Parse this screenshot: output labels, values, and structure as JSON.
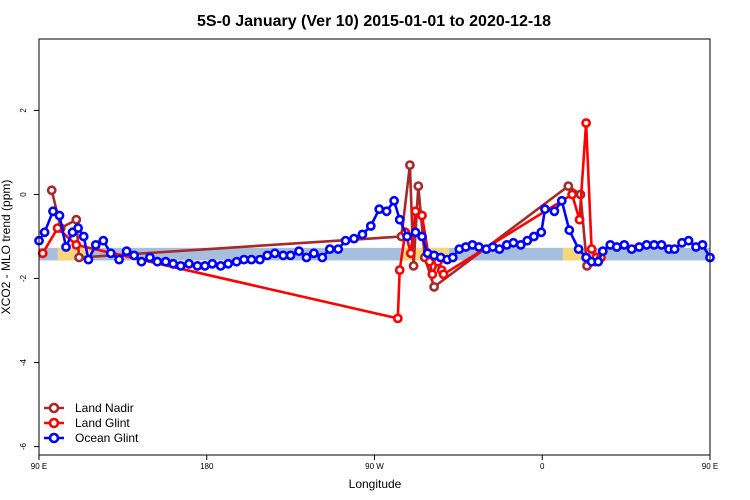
{
  "chart_data": {
    "type": "line",
    "title": "5S-0 January (Ver 10)   2015-01-01 to 2020-12-18",
    "xlabel": "Longitude",
    "ylabel": "XCO2 - MLO trend (ppm)",
    "xlim": [
      90,
      450
    ],
    "ylim": [
      -6.2,
      3.7
    ],
    "x_ticks": [
      {
        "value": 90,
        "label": "90 E"
      },
      {
        "value": 180,
        "label": "180"
      },
      {
        "value": 270,
        "label": "90 W"
      },
      {
        "value": 360,
        "label": "0"
      },
      {
        "value": 450,
        "label": "90 E"
      },
      {
        "value": 540,
        "label": "180"
      }
    ],
    "y_ticks": [
      {
        "value": -6,
        "label": "-6"
      },
      {
        "value": -4,
        "label": "-4"
      },
      {
        "value": -2,
        "label": "-2"
      },
      {
        "value": 0,
        "label": "0"
      },
      {
        "value": 2,
        "label": "2"
      }
    ],
    "grid": false,
    "legend_position": "bottom-left",
    "band": {
      "y_center": -1.42,
      "y_half_height": 0.15,
      "color": "#a6bfdf",
      "land_color": "#f5d77a"
    },
    "land_segments": [
      [
        100,
        118
      ],
      [
        285,
        310
      ],
      [
        371,
        385
      ],
      [
        455,
        478
      ]
    ],
    "series": [
      {
        "name": "Land Nadir",
        "color": "#a52a2a",
        "x": [
          111.2,
          112.6,
          113.2,
          113.8,
          114.6,
          131.0,
          133.0,
          286.4,
          287.8,
          288.8,
          290.6,
          291.8,
          298.2,
          299.6,
          300.8,
          303.0,
          304.2,
          304.8,
          305.5,
          352.4,
          353.9,
          356.9,
          358.6,
          361.0,
          361.9,
          364.0,
          411.2,
          413.9,
          420.0
        ],
        "y": [
          1.1,
          0.5,
          0.3,
          0.0,
          -0.2,
          0.1,
          -0.8,
          -1.4,
          -1.5,
          -1.7,
          -1.8,
          -2.0,
          -1.0,
          -1.2,
          0.7,
          -1.6,
          0.2,
          -1.0,
          -1.5,
          0.2,
          -1.5,
          -1.6,
          -1.6,
          -1.5,
          -1.7,
          -1.5,
          0.4,
          0.1,
          -0.9
        ],
        "points": [
          [
            96.8,
            0.1
          ],
          [
            101.7,
            -0.8
          ],
          [
            110.0,
            -0.6
          ],
          [
            111.5,
            -1.5
          ],
          [
            284.5,
            -1.0
          ],
          [
            289.0,
            0.7
          ],
          [
            291.0,
            -1.7
          ],
          [
            293.5,
            0.2
          ],
          [
            297.0,
            -1.5
          ],
          [
            302.0,
            -2.2
          ],
          [
            374.0,
            0.2
          ],
          [
            380.5,
            0.0
          ],
          [
            384.0,
            -1.7
          ],
          [
            388.5,
            -1.6
          ],
          [
            469.5,
            0.1
          ],
          [
            474.5,
            -0.8
          ],
          [
            481.5,
            -0.6
          ],
          [
            484.0,
            -1.6
          ]
        ]
      },
      {
        "name": "Land Glint",
        "color": "#ff0000",
        "points": [
          [
            92.0,
            -1.4
          ],
          [
            100.0,
            -0.8
          ],
          [
            110.0,
            -1.2
          ],
          [
            282.5,
            -2.95
          ],
          [
            283.5,
            -1.8
          ],
          [
            286.5,
            -0.9
          ],
          [
            289.5,
            -1.4
          ],
          [
            292.0,
            -0.4
          ],
          [
            295.5,
            -0.5
          ],
          [
            299.5,
            -1.6
          ],
          [
            301.0,
            -1.9
          ],
          [
            304.0,
            -1.6
          ],
          [
            306.0,
            -1.8
          ],
          [
            307.0,
            -1.9
          ],
          [
            376.0,
            0.0
          ],
          [
            380.0,
            -0.6
          ],
          [
            383.5,
            1.7
          ],
          [
            386.5,
            -1.3
          ],
          [
            389.0,
            -1.5
          ],
          [
            391.5,
            -1.5
          ],
          [
            483.5,
            -1.4
          ],
          [
            489.0,
            -1.2
          ],
          [
            492.5,
            -1.6
          ]
        ]
      },
      {
        "name": "Ocean Glint",
        "color": "#0000ff",
        "points": [
          [
            90.0,
            -1.1
          ],
          [
            93.0,
            -0.9
          ],
          [
            97.5,
            -0.4
          ],
          [
            101.0,
            -0.5
          ],
          [
            104.5,
            -1.25
          ],
          [
            108.0,
            -0.9
          ],
          [
            111.0,
            -0.8
          ],
          [
            114.0,
            -1.0
          ],
          [
            116.5,
            -1.55
          ],
          [
            120.5,
            -1.2
          ],
          [
            124.5,
            -1.1
          ],
          [
            128.5,
            -1.4
          ],
          [
            133.0,
            -1.55
          ],
          [
            137.0,
            -1.35
          ],
          [
            141.0,
            -1.45
          ],
          [
            145.0,
            -1.6
          ],
          [
            149.5,
            -1.5
          ],
          [
            153.5,
            -1.6
          ],
          [
            158.0,
            -1.6
          ],
          [
            162.0,
            -1.65
          ],
          [
            166.0,
            -1.7
          ],
          [
            170.5,
            -1.65
          ],
          [
            175.0,
            -1.7
          ],
          [
            179.0,
            -1.7
          ],
          [
            183.0,
            -1.65
          ],
          [
            187.5,
            -1.7
          ],
          [
            191.5,
            -1.65
          ],
          [
            196.0,
            -1.6
          ],
          [
            200.0,
            -1.55
          ],
          [
            204.0,
            -1.55
          ],
          [
            208.5,
            -1.55
          ],
          [
            212.5,
            -1.45
          ],
          [
            216.5,
            -1.4
          ],
          [
            221.0,
            -1.45
          ],
          [
            225.0,
            -1.45
          ],
          [
            229.5,
            -1.35
          ],
          [
            233.5,
            -1.5
          ],
          [
            237.5,
            -1.4
          ],
          [
            242.0,
            -1.5
          ],
          [
            246.0,
            -1.3
          ],
          [
            250.5,
            -1.3
          ],
          [
            254.5,
            -1.1
          ],
          [
            259.0,
            -1.05
          ],
          [
            263.5,
            -0.95
          ],
          [
            268.0,
            -0.75
          ],
          [
            272.5,
            -0.35
          ],
          [
            276.5,
            -0.4
          ],
          [
            280.5,
            -0.15
          ],
          [
            283.5,
            -0.6
          ],
          [
            287.5,
            -1.0
          ],
          [
            292.0,
            -0.9
          ],
          [
            295.5,
            -1.0
          ],
          [
            298.5,
            -1.4
          ],
          [
            302.0,
            -1.45
          ],
          [
            305.5,
            -1.5
          ],
          [
            309.0,
            -1.55
          ],
          [
            312.0,
            -1.5
          ],
          [
            315.5,
            -1.3
          ],
          [
            319.0,
            -1.25
          ],
          [
            322.5,
            -1.2
          ],
          [
            326.0,
            -1.25
          ],
          [
            330.0,
            -1.3
          ],
          [
            333.5,
            -1.25
          ],
          [
            337.0,
            -1.3
          ],
          [
            341.0,
            -1.2
          ],
          [
            344.5,
            -1.15
          ],
          [
            348.5,
            -1.2
          ],
          [
            352.0,
            -1.1
          ],
          [
            355.5,
            -1.0
          ],
          [
            359.5,
            -0.9
          ],
          [
            361.5,
            -0.35
          ],
          [
            366.5,
            -0.4
          ],
          [
            370.5,
            -0.15
          ],
          [
            374.5,
            -0.85
          ],
          [
            379.5,
            -1.3
          ],
          [
            383.5,
            -1.5
          ],
          [
            386.5,
            -1.6
          ],
          [
            390.0,
            -1.6
          ],
          [
            392.5,
            -1.35
          ],
          [
            396.5,
            -1.2
          ],
          [
            400.0,
            -1.25
          ],
          [
            404.0,
            -1.2
          ],
          [
            408.0,
            -1.3
          ],
          [
            412.0,
            -1.25
          ],
          [
            416.0,
            -1.2
          ],
          [
            420.0,
            -1.2
          ],
          [
            424.0,
            -1.2
          ],
          [
            428.0,
            -1.3
          ],
          [
            431.0,
            -1.3
          ],
          [
            435.0,
            -1.15
          ],
          [
            438.5,
            -1.1
          ],
          [
            442.5,
            -1.25
          ],
          [
            446.0,
            -1.2
          ],
          [
            450.0,
            -1.5
          ]
        ]
      }
    ]
  }
}
